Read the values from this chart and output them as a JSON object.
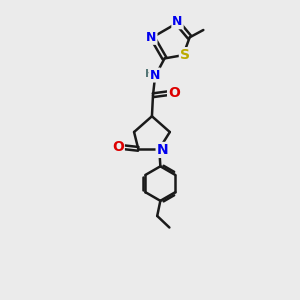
{
  "bg_color": "#ebebeb",
  "bond_color": "#1a1a1a",
  "bond_width": 1.8,
  "atom_colors": {
    "N": "#0000ee",
    "O": "#dd0000",
    "S": "#bbaa00",
    "H": "#557777"
  },
  "font_size": 9,
  "fig_size": [
    3.0,
    3.0
  ],
  "dpi": 100
}
